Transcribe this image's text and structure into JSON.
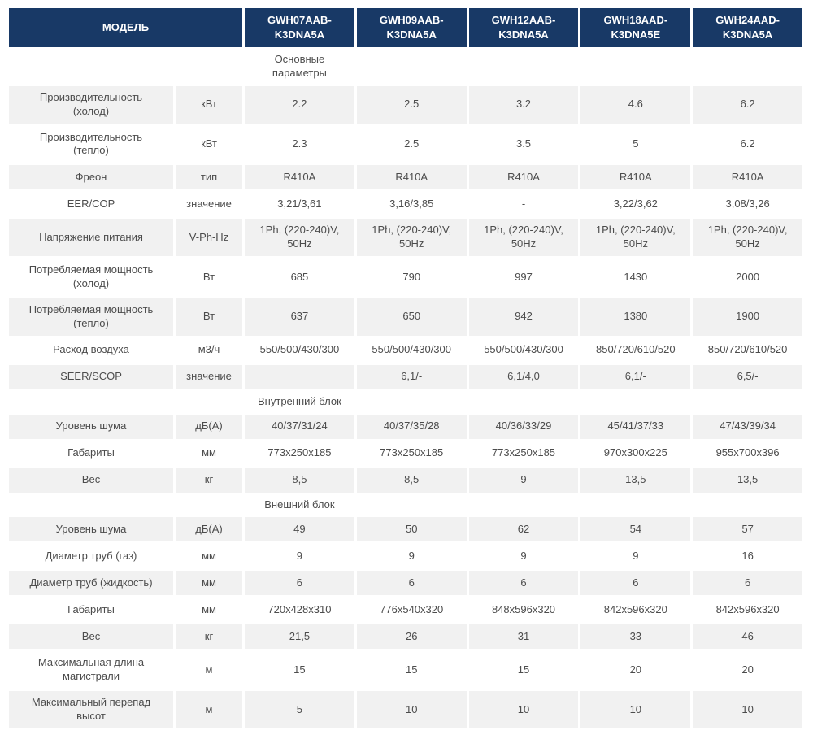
{
  "colors": {
    "header_bg": "#183966",
    "header_text": "#ffffff",
    "row_shaded_bg": "#f1f1f1",
    "row_bg": "#ffffff",
    "body_text": "#4c4c4c"
  },
  "table": {
    "header": {
      "model_label": "МОДЕЛЬ",
      "models": [
        "GWH07AAB-\nK3DNA5A",
        "GWH09AAB-\nK3DNA5A",
        "GWH12AAB-\nK3DNA5A",
        "GWH18AAD-\nK3DNA5E",
        "GWH24AAD-\nK3DNA5A"
      ]
    },
    "sections": [
      {
        "title": "Основные параметры",
        "rows": [
          {
            "label": "Производительность\n(холод)",
            "unit": "кВт",
            "values": [
              "2.2",
              "2.5",
              "3.2",
              "4.6",
              "6.2"
            ]
          },
          {
            "label": "Производительность\n(тепло)",
            "unit": "кВт",
            "values": [
              "2.3",
              "2.5",
              "3.5",
              "5",
              "6.2"
            ]
          },
          {
            "label": "Фреон",
            "unit": "тип",
            "values": [
              "R410A",
              "R410A",
              "R410A",
              "R410A",
              "R410A"
            ]
          },
          {
            "label": "EER/COP",
            "unit": "значение",
            "values": [
              "3,21/3,61",
              "3,16/3,85",
              "-",
              "3,22/3,62",
              "3,08/3,26"
            ]
          },
          {
            "label": "Напряжение питания",
            "unit": "V-Ph-Hz",
            "values": [
              "1Ph, (220-240)V,\n50Hz",
              "1Ph, (220-240)V,\n50Hz",
              "1Ph, (220-240)V,\n50Hz",
              "1Ph, (220-240)V,\n50Hz",
              "1Ph, (220-240)V,\n50Hz"
            ]
          },
          {
            "label": "Потребляемая мощность\n(холод)",
            "unit": "Вт",
            "values": [
              "685",
              "790",
              "997",
              "1430",
              "2000"
            ]
          },
          {
            "label": "Потребляемая мощность\n(тепло)",
            "unit": "Вт",
            "values": [
              "637",
              "650",
              "942",
              "1380",
              "1900"
            ]
          },
          {
            "label": "Расход воздуха",
            "unit": "м3/ч",
            "values": [
              "550/500/430/300",
              "550/500/430/300",
              "550/500/430/300",
              "850/720/610/520",
              "850/720/610/520"
            ]
          },
          {
            "label": "SEER/SCOP",
            "unit": "значение",
            "values": [
              "",
              "6,1/-",
              "6,1/4,0",
              "6,1/-",
              "6,5/-"
            ]
          }
        ]
      },
      {
        "title": "Внутренний блок",
        "rows": [
          {
            "label": "Уровень шума",
            "unit": "дБ(А)",
            "values": [
              "40/37/31/24",
              "40/37/35/28",
              "40/36/33/29",
              "45/41/37/33",
              "47/43/39/34"
            ]
          },
          {
            "label": "Габариты",
            "unit": "мм",
            "values": [
              "773x250x185",
              "773x250x185",
              "773x250x185",
              "970x300x225",
              "955x700x396"
            ]
          },
          {
            "label": "Вес",
            "unit": "кг",
            "values": [
              "8,5",
              "8,5",
              "9",
              "13,5",
              "13,5"
            ]
          }
        ]
      },
      {
        "title": "Внешний блок",
        "rows": [
          {
            "label": "Уровень шума",
            "unit": "дБ(А)",
            "values": [
              "49",
              "50",
              "62",
              "54",
              "57"
            ]
          },
          {
            "label": "Диаметр труб (газ)",
            "unit": "мм",
            "values": [
              "9",
              "9",
              "9",
              "9",
              "16"
            ]
          },
          {
            "label": "Диаметр труб (жидкость)",
            "unit": "мм",
            "values": [
              "6",
              "6",
              "6",
              "6",
              "6"
            ]
          },
          {
            "label": "Габариты",
            "unit": "мм",
            "values": [
              "720x428x310",
              "776x540x320",
              "848x596x320",
              "842x596x320",
              "842x596x320"
            ]
          },
          {
            "label": "Вес",
            "unit": "кг",
            "values": [
              "21,5",
              "26",
              "31",
              "33",
              "46"
            ]
          },
          {
            "label": "Максимальная длина\nмагистрали",
            "unit": "м",
            "values": [
              "15",
              "15",
              "15",
              "20",
              "20"
            ]
          },
          {
            "label": "Максимальный перепад\nвысот",
            "unit": "м",
            "values": [
              "5",
              "10",
              "10",
              "10",
              "10"
            ]
          }
        ]
      }
    ]
  }
}
